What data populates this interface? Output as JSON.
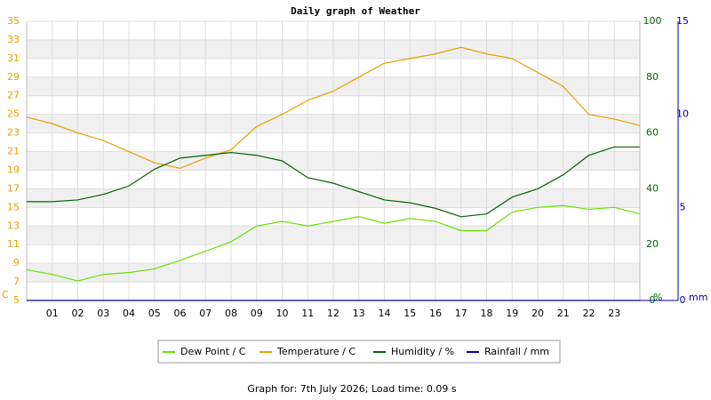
{
  "chart_data": {
    "type": "line",
    "title": "Daily graph of Weather",
    "footer": "Graph for: 7th July 2026; Load time: 0.09 s",
    "x": [
      0,
      1,
      2,
      3,
      4,
      5,
      6,
      7,
      8,
      9,
      10,
      11,
      12,
      13,
      14,
      15,
      16,
      17,
      18,
      19,
      20,
      21,
      22,
      23,
      24
    ],
    "xlim": [
      0,
      24
    ],
    "xticks": [
      {
        "value": 1,
        "label": "01"
      },
      {
        "value": 2,
        "label": "02"
      },
      {
        "value": 3,
        "label": "03"
      },
      {
        "value": 4,
        "label": "04"
      },
      {
        "value": 5,
        "label": "05"
      },
      {
        "value": 6,
        "label": "06"
      },
      {
        "value": 7,
        "label": "07"
      },
      {
        "value": 8,
        "label": "08"
      },
      {
        "value": 9,
        "label": "09"
      },
      {
        "value": 10,
        "label": "10"
      },
      {
        "value": 11,
        "label": "11"
      },
      {
        "value": 12,
        "label": "12"
      },
      {
        "value": 13,
        "label": "13"
      },
      {
        "value": 14,
        "label": "14"
      },
      {
        "value": 15,
        "label": "15"
      },
      {
        "value": 16,
        "label": "16"
      },
      {
        "value": 17,
        "label": "17"
      },
      {
        "value": 18,
        "label": "18"
      },
      {
        "value": 19,
        "label": "19"
      },
      {
        "value": 20,
        "label": "20"
      },
      {
        "value": 21,
        "label": "21"
      },
      {
        "value": 22,
        "label": "22"
      },
      {
        "value": 23,
        "label": "23"
      }
    ],
    "ylim": [
      5,
      35
    ],
    "yticks": [
      5,
      7,
      9,
      11,
      13,
      15,
      17,
      19,
      21,
      23,
      25,
      27,
      29,
      31,
      33,
      35
    ],
    "y_unit": "C",
    "y2lim": [
      0,
      100
    ],
    "y2ticks": [
      0,
      20,
      40,
      60,
      80,
      100
    ],
    "y2_unit": "%",
    "y3lim": [
      0,
      15
    ],
    "y3ticks": [
      0,
      5,
      10,
      15
    ],
    "y3_unit": "mm",
    "grid": true,
    "series": [
      {
        "name": "Dew Point / C",
        "color": "#66e000",
        "axis": "y",
        "values": [
          8.3,
          7.8,
          7.1,
          7.8,
          8.0,
          8.4,
          9.3,
          10.3,
          11.3,
          13.0,
          13.5,
          13.0,
          13.5,
          14.0,
          13.3,
          13.8,
          13.5,
          12.5,
          12.5,
          14.5,
          15.0,
          15.2,
          14.8,
          15.0,
          14.3
        ]
      },
      {
        "name": "Temperature / C",
        "color": "#e8a000",
        "axis": "y",
        "values": [
          24.7,
          24.0,
          23.0,
          22.2,
          21.0,
          19.8,
          19.2,
          20.3,
          21.2,
          23.7,
          25.0,
          26.5,
          27.5,
          29.0,
          30.5,
          31.0,
          31.5,
          32.2,
          31.5,
          31.0,
          29.5,
          28.0,
          25.0,
          24.5,
          23.8
        ]
      },
      {
        "name": "Humidity / %",
        "color": "#006400",
        "axis": "y2",
        "values": [
          35.4,
          35.4,
          36,
          38,
          41,
          47,
          51,
          52,
          53,
          52,
          50,
          44,
          42,
          39,
          36,
          35,
          33,
          30,
          31,
          37,
          40,
          45,
          52,
          55,
          55
        ]
      },
      {
        "name": "Rainfall / mm",
        "color": "#0000aa",
        "axis": "y3",
        "values": [
          0,
          0,
          0,
          0,
          0,
          0,
          0,
          0,
          0,
          0,
          0,
          0,
          0,
          0,
          0,
          0,
          0,
          0,
          0,
          0,
          0,
          0,
          0,
          0,
          0
        ]
      }
    ]
  }
}
